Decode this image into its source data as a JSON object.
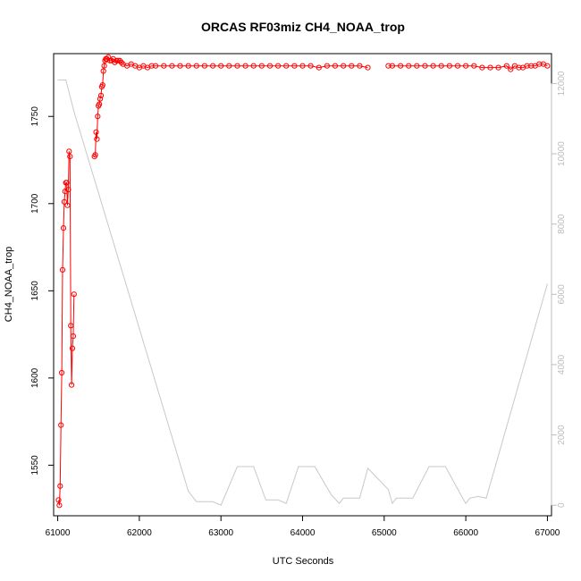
{
  "chart_data": {
    "type": "line",
    "title": "ORCAS RF03miz CH4_NOAA_trop",
    "xlabel": "UTC Seconds",
    "ylabel": "CH4_NOAA_trop",
    "xlim": [
      60950,
      67050
    ],
    "ylim": [
      1521,
      1786
    ],
    "y2lim": [
      -300,
      12850
    ],
    "x_ticks": [
      61000,
      62000,
      63000,
      64000,
      65000,
      66000,
      67000
    ],
    "y_ticks": [
      1550,
      1600,
      1650,
      1700,
      1750
    ],
    "y2_ticks": [
      0,
      2000,
      4000,
      6000,
      8000,
      10000,
      12000
    ],
    "grid": false,
    "colors": {
      "ch4": "#ff0000",
      "altitude": "#c8c8c8",
      "right_axis": "#bdbdbd"
    },
    "series": [
      {
        "role": "primary",
        "x": [
          61010,
          61020,
          61030,
          61040,
          61050,
          61060,
          61070,
          61080,
          61090,
          61100,
          61110,
          61120,
          61130,
          61140,
          61150,
          61160,
          61170,
          61180,
          61190,
          61200,
          61450,
          61460,
          61470,
          61480,
          61490,
          61500,
          61510,
          61520,
          61530,
          61540,
          61550,
          61560,
          61570,
          61580,
          61590,
          61600,
          61620,
          61640,
          61660,
          61680,
          61700,
          61720,
          61740,
          61760,
          61780,
          61800,
          61850,
          61900,
          61950,
          62000,
          62050,
          62100,
          62150,
          62200,
          62300,
          62400,
          62500,
          62600,
          62700,
          62800,
          62900,
          63000,
          63100,
          63200,
          63300,
          63400,
          63500,
          63600,
          63700,
          63800,
          63900,
          64000,
          64100,
          64200,
          64300,
          64400,
          64500,
          64600,
          64700,
          64800,
          65050,
          65100,
          65200,
          65300,
          65400,
          65500,
          65600,
          65700,
          65800,
          65900,
          66000,
          66100,
          66200,
          66300,
          66400,
          66500,
          66550,
          66600,
          66650,
          66700,
          66750,
          66800,
          66850,
          66900,
          66950,
          67000
        ],
        "y": [
          1530,
          1527,
          1538,
          1573,
          1603,
          1662,
          1686,
          1701,
          1707,
          1712,
          1712,
          1699,
          1708,
          1730,
          1727,
          1630,
          1596,
          1617,
          1624,
          1648,
          1727,
          1728,
          1741,
          1737,
          1750,
          1756,
          1757,
          1760,
          1762,
          1767,
          1768,
          1776,
          1779,
          1782,
          1783,
          1783,
          1784,
          1782,
          1782,
          1783,
          1781,
          1782,
          1782,
          1782,
          1781,
          1780,
          1779,
          1780,
          1779,
          1778,
          1779,
          1778,
          1779,
          1779,
          1779,
          1779,
          1779,
          1779,
          1779,
          1779,
          1779,
          1779,
          1779,
          1779,
          1779,
          1779,
          1779,
          1779,
          1779,
          1779,
          1779,
          1779,
          1779,
          1778,
          1779,
          1779,
          1779,
          1779,
          1779,
          1778,
          1779,
          1779,
          1779,
          1779,
          1779,
          1779,
          1779,
          1779,
          1779,
          1779,
          1779,
          1779,
          1778,
          1778,
          1778,
          1779,
          1777,
          1779,
          1778,
          1778,
          1779,
          1779,
          1779,
          1780,
          1780,
          1779
        ]
      },
      {
        "role": "secondary",
        "x": [
          61000,
          61100,
          61200,
          62600,
          62700,
          62900,
          63000,
          63200,
          63400,
          63550,
          63700,
          63800,
          63950,
          64150,
          64350,
          64450,
          64500,
          64700,
          64800,
          65050,
          65100,
          65150,
          65350,
          65550,
          65750,
          65950,
          66000,
          66050,
          66150,
          66250,
          67000
        ],
        "y": [
          12100,
          12100,
          11200,
          400,
          100,
          100,
          0,
          1100,
          1100,
          150,
          150,
          50,
          1100,
          1100,
          300,
          50,
          200,
          200,
          1050,
          450,
          50,
          200,
          200,
          1100,
          1100,
          250,
          50,
          200,
          250,
          200,
          6300
        ]
      }
    ]
  }
}
